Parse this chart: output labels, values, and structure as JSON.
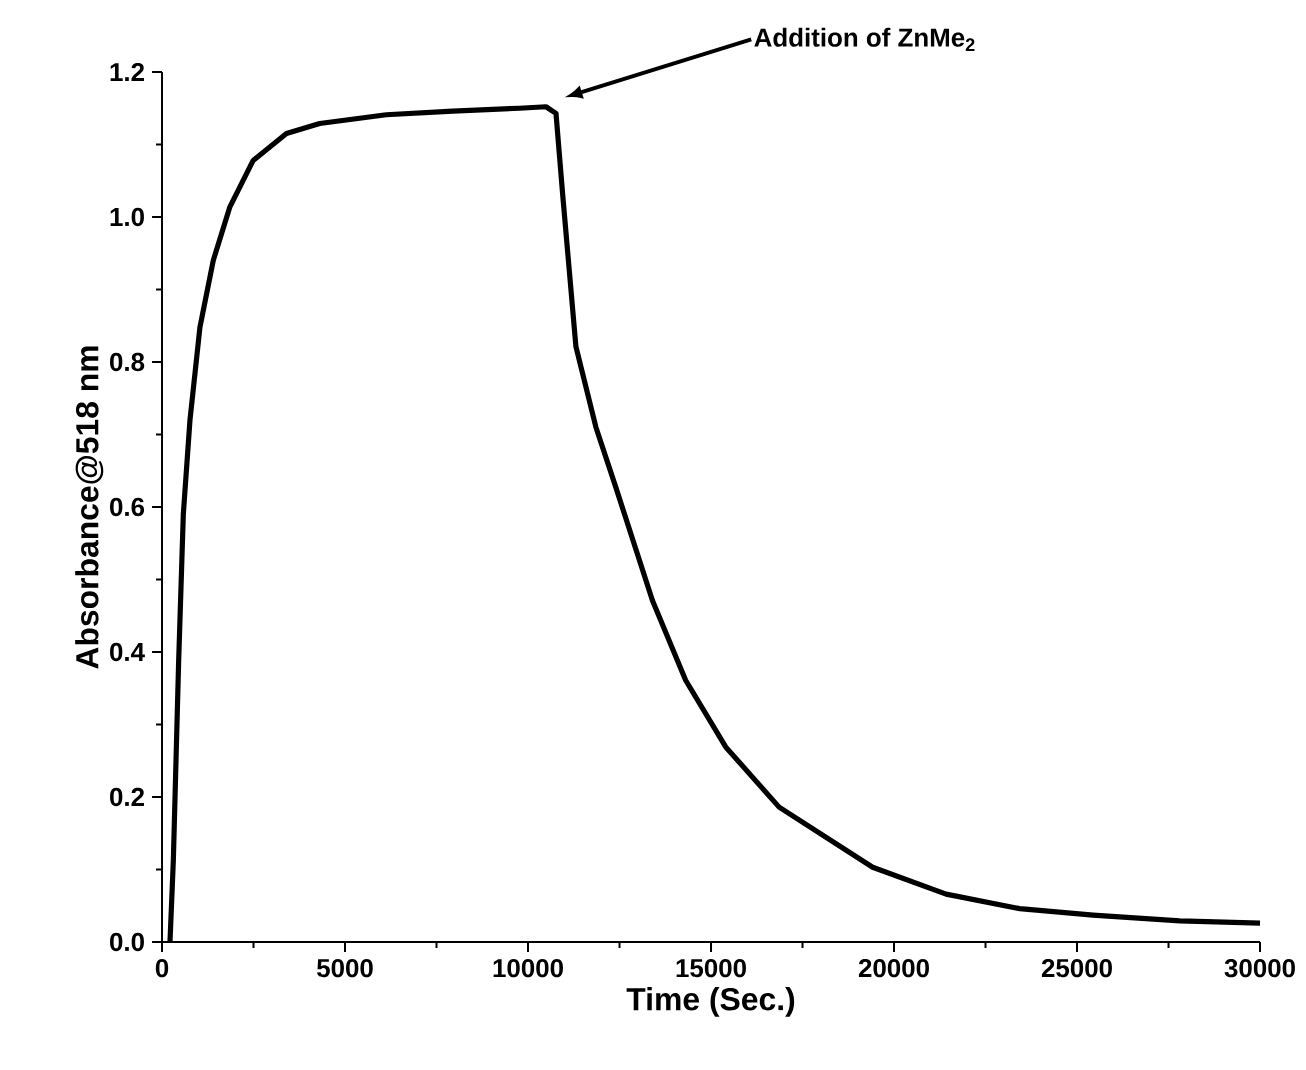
{
  "chart_data": {
    "type": "line",
    "xlabel": "Time (Sec.)",
    "ylabel": "Absorbance@518 nm",
    "xlim": [
      0,
      30000
    ],
    "ylim": [
      0,
      1.2
    ],
    "xticks": [
      0,
      5000,
      10000,
      15000,
      20000,
      25000,
      30000
    ],
    "yticks": [
      {
        "value": 0,
        "label": "0.0"
      },
      {
        "value": 0.2,
        "label": "0.2"
      },
      {
        "value": 0.4,
        "label": "0.4"
      },
      {
        "value": 0.6,
        "label": "0.6"
      },
      {
        "value": 0.8,
        "label": "0.8"
      },
      {
        "value": 1.0,
        "label": "1.0"
      },
      {
        "value": 1.2,
        "label": "1.2"
      }
    ],
    "grid": false,
    "marker": "none",
    "line_style": "solid",
    "annotations": [
      "Addition of ZnMe$_{2}$"
    ],
    "series": [
      {
        "color": "#000000",
        "x": [
          218,
          309,
          455,
          582,
          764,
          1036,
          1400,
          1855,
          2491,
          3400,
          4309,
          6127,
          7945,
          9764,
          10491,
          10764,
          10945,
          11309,
          11855,
          12400,
          13400,
          14307,
          15401,
          16861,
          19416,
          21423,
          23431,
          25438,
          27810,
          30000
        ],
        "values": [
          0,
          0.112,
          0.388,
          0.59,
          0.72,
          0.848,
          0.94,
          1.014,
          1.078,
          1.115,
          1.129,
          1.141,
          1.146,
          1.15,
          1.152,
          1.143,
          1.032,
          0.821,
          0.71,
          0.627,
          0.471,
          0.361,
          0.269,
          0.186,
          0.103,
          0.066,
          0.046,
          0.037,
          0.029,
          0.026
        ]
      }
    ]
  }
}
